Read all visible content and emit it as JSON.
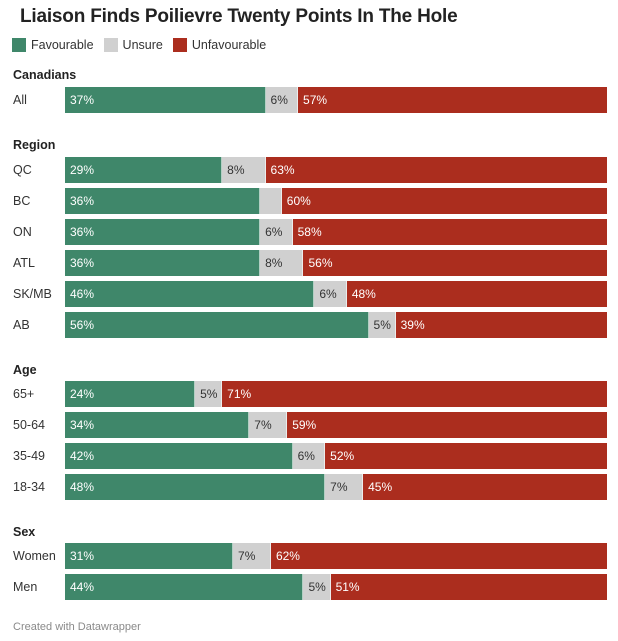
{
  "title": "Liaison Finds Poilievre Twenty Points In The Hole",
  "legend": [
    {
      "label": "Favourable",
      "color": "#3f876a"
    },
    {
      "label": "Unsure",
      "color": "#d0d0d0"
    },
    {
      "label": "Unfavourable",
      "color": "#ab2d1e"
    }
  ],
  "footer": "Created with Datawrapper",
  "chart_data": {
    "type": "bar",
    "orientation": "horizontal",
    "stacked": true,
    "title": "Liaison Finds Poilievre Twenty Points In The Hole",
    "series_names": [
      "Favourable",
      "Unsure",
      "Unfavourable"
    ],
    "xlim": [
      0,
      100
    ],
    "groups": [
      {
        "title": "Canadians",
        "rows": [
          {
            "label": "All",
            "values": [
              37,
              6,
              57
            ],
            "labels": [
              "37%",
              "6%",
              "57%"
            ]
          }
        ]
      },
      {
        "title": "Region",
        "rows": [
          {
            "label": "QC",
            "values": [
              29,
              8,
              63
            ],
            "labels": [
              "29%",
              "8%",
              "63%"
            ]
          },
          {
            "label": "BC",
            "values": [
              36,
              4,
              60
            ],
            "labels": [
              "36%",
              "",
              "60%"
            ]
          },
          {
            "label": "ON",
            "values": [
              36,
              6,
              58
            ],
            "labels": [
              "36%",
              "6%",
              "58%"
            ]
          },
          {
            "label": "ATL",
            "values": [
              36,
              8,
              56
            ],
            "labels": [
              "36%",
              "8%",
              "56%"
            ]
          },
          {
            "label": "SK/MB",
            "values": [
              46,
              6,
              48
            ],
            "labels": [
              "46%",
              "6%",
              "48%"
            ]
          },
          {
            "label": "AB",
            "values": [
              56,
              5,
              39
            ],
            "labels": [
              "56%",
              "5%",
              "39%"
            ]
          }
        ]
      },
      {
        "title": "Age",
        "rows": [
          {
            "label": "65+",
            "values": [
              24,
              5,
              71
            ],
            "labels": [
              "24%",
              "5%",
              "71%"
            ]
          },
          {
            "label": "50-64",
            "values": [
              34,
              7,
              59
            ],
            "labels": [
              "34%",
              "7%",
              "59%"
            ]
          },
          {
            "label": "35-49",
            "values": [
              42,
              6,
              52
            ],
            "labels": [
              "42%",
              "6%",
              "52%"
            ]
          },
          {
            "label": "18-34",
            "values": [
              48,
              7,
              45
            ],
            "labels": [
              "48%",
              "7%",
              "45%"
            ]
          }
        ]
      },
      {
        "title": "Sex",
        "rows": [
          {
            "label": "Women",
            "values": [
              31,
              7,
              62
            ],
            "labels": [
              "31%",
              "7%",
              "62%"
            ]
          },
          {
            "label": "Men",
            "values": [
              44,
              5,
              51
            ],
            "labels": [
              "44%",
              "5%",
              "51%"
            ]
          }
        ]
      }
    ]
  }
}
